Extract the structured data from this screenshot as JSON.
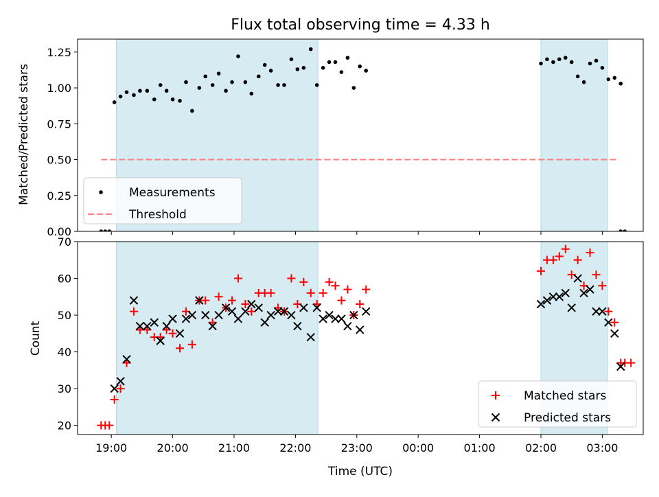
{
  "chart_data": [
    {
      "type": "scatter",
      "title": "Flux total observing time = 4.33 h",
      "xlabel": "",
      "ylabel": "Matched/Predicted stars",
      "ylim": [
        0,
        1.34
      ],
      "xlim": [
        "18:27",
        "03:40"
      ],
      "yticks": [
        "0.00",
        "0.25",
        "0.50",
        "0.75",
        "1.00",
        "1.25"
      ],
      "ytick_values": [
        0,
        0.25,
        0.5,
        0.75,
        1.0,
        1.25
      ],
      "grid": false,
      "legend_position": "lower-left",
      "shaded_intervals": [
        [
          "19:05",
          "22:22"
        ],
        [
          "02:00",
          "03:05"
        ]
      ],
      "threshold": {
        "name": "Threshold",
        "y": 0.5,
        "x_range": [
          "18:50",
          "03:15"
        ],
        "color": "#ff7f7f"
      },
      "series": [
        {
          "name": "Measurements",
          "marker": "dot",
          "color": "#000000",
          "points": [
            [
              "18:50",
              0
            ],
            [
              "18:54",
              0
            ],
            [
              "18:58",
              0
            ],
            [
              "19:03",
              0.9
            ],
            [
              "19:09",
              0.94
            ],
            [
              "19:15",
              0.97
            ],
            [
              "19:22",
              0.95
            ],
            [
              "19:28",
              0.98
            ],
            [
              "19:35",
              0.98
            ],
            [
              "19:42",
              0.92
            ],
            [
              "19:48",
              1.02
            ],
            [
              "19:54",
              0.98
            ],
            [
              "20:00",
              0.92
            ],
            [
              "20:07",
              0.91
            ],
            [
              "20:13",
              1.04
            ],
            [
              "20:19",
              0.84
            ],
            [
              "20:26",
              1.0
            ],
            [
              "20:32",
              1.08
            ],
            [
              "20:39",
              1.02
            ],
            [
              "20:45",
              1.1
            ],
            [
              "20:52",
              0.98
            ],
            [
              "20:58",
              1.04
            ],
            [
              "21:04",
              1.22
            ],
            [
              "21:11",
              1.04
            ],
            [
              "21:17",
              0.96
            ],
            [
              "21:24",
              1.08
            ],
            [
              "21:30",
              1.16
            ],
            [
              "21:36",
              1.12
            ],
            [
              "21:43",
              1.02
            ],
            [
              "21:49",
              1.02
            ],
            [
              "21:56",
              1.2
            ],
            [
              "22:02",
              1.13
            ],
            [
              "22:08",
              1.14
            ],
            [
              "22:15",
              1.27
            ],
            [
              "22:21",
              1.02
            ],
            [
              "22:27",
              1.14
            ],
            [
              "22:33",
              1.18
            ],
            [
              "22:39",
              1.18
            ],
            [
              "22:45",
              1.11
            ],
            [
              "22:51",
              1.21
            ],
            [
              "22:57",
              1.0
            ],
            [
              "23:03",
              1.15
            ],
            [
              "23:09",
              1.12
            ],
            [
              "02:00",
              1.17
            ],
            [
              "02:06",
              1.2
            ],
            [
              "02:12",
              1.18
            ],
            [
              "02:18",
              1.2
            ],
            [
              "02:24",
              1.21
            ],
            [
              "02:30",
              1.18
            ],
            [
              "02:36",
              1.08
            ],
            [
              "02:42",
              1.04
            ],
            [
              "02:48",
              1.17
            ],
            [
              "02:54",
              1.19
            ],
            [
              "03:00",
              1.14
            ],
            [
              "03:06",
              1.06
            ],
            [
              "03:12",
              1.07
            ],
            [
              "03:18",
              1.03
            ],
            [
              "03:18",
              0
            ],
            [
              "03:22",
              0
            ]
          ]
        }
      ]
    },
    {
      "type": "scatter",
      "title": "",
      "xlabel": "Time (UTC)",
      "ylabel": "Count",
      "ylim": [
        17.5,
        70
      ],
      "xlim": [
        "18:27",
        "03:40"
      ],
      "xticks": [
        "19:00",
        "20:00",
        "21:00",
        "22:00",
        "23:00",
        "00:00",
        "01:00",
        "02:00",
        "03:00"
      ],
      "yticks": [
        "20",
        "30",
        "40",
        "50",
        "60",
        "70"
      ],
      "ytick_values": [
        20,
        30,
        40,
        50,
        60,
        70
      ],
      "grid": false,
      "legend_position": "lower-right",
      "shaded_intervals": [
        [
          "19:05",
          "22:22"
        ],
        [
          "02:00",
          "03:05"
        ]
      ],
      "series": [
        {
          "name": "Matched stars",
          "marker": "plus",
          "color": "#ff0000",
          "points": [
            [
              "18:50",
              20
            ],
            [
              "18:54",
              20
            ],
            [
              "18:58",
              20
            ],
            [
              "19:03",
              27
            ],
            [
              "19:09",
              30
            ],
            [
              "19:15",
              37
            ],
            [
              "19:22",
              51
            ],
            [
              "19:28",
              46
            ],
            [
              "19:35",
              46
            ],
            [
              "19:42",
              44
            ],
            [
              "19:48",
              44
            ],
            [
              "19:54",
              46
            ],
            [
              "20:00",
              45
            ],
            [
              "20:07",
              41
            ],
            [
              "20:13",
              51
            ],
            [
              "20:19",
              42
            ],
            [
              "20:26",
              54
            ],
            [
              "20:32",
              54
            ],
            [
              "20:39",
              48
            ],
            [
              "20:45",
              55
            ],
            [
              "20:52",
              52
            ],
            [
              "20:58",
              54
            ],
            [
              "21:04",
              60
            ],
            [
              "21:11",
              53
            ],
            [
              "21:17",
              51
            ],
            [
              "21:24",
              56
            ],
            [
              "21:30",
              56
            ],
            [
              "21:36",
              56
            ],
            [
              "21:43",
              52
            ],
            [
              "21:49",
              51
            ],
            [
              "21:56",
              60
            ],
            [
              "22:02",
              53
            ],
            [
              "22:08",
              59
            ],
            [
              "22:15",
              56
            ],
            [
              "22:21",
              53
            ],
            [
              "22:27",
              56
            ],
            [
              "22:33",
              59
            ],
            [
              "22:39",
              58
            ],
            [
              "22:45",
              54
            ],
            [
              "22:51",
              57
            ],
            [
              "22:57",
              50
            ],
            [
              "23:03",
              53
            ],
            [
              "23:09",
              57
            ],
            [
              "02:00",
              62
            ],
            [
              "02:06",
              65
            ],
            [
              "02:12",
              65
            ],
            [
              "02:18",
              66
            ],
            [
              "02:24",
              68
            ],
            [
              "02:30",
              61
            ],
            [
              "02:36",
              65
            ],
            [
              "02:42",
              58
            ],
            [
              "02:48",
              67
            ],
            [
              "02:54",
              61
            ],
            [
              "03:00",
              58
            ],
            [
              "03:06",
              51
            ],
            [
              "03:12",
              48
            ],
            [
              "03:18",
              37
            ],
            [
              "03:22",
              37
            ],
            [
              "03:28",
              37
            ]
          ]
        },
        {
          "name": "Predicted stars",
          "marker": "x",
          "color": "#000000",
          "points": [
            [
              "19:03",
              30
            ],
            [
              "19:09",
              32
            ],
            [
              "19:15",
              38
            ],
            [
              "19:22",
              54
            ],
            [
              "19:28",
              47
            ],
            [
              "19:35",
              47
            ],
            [
              "19:42",
              48
            ],
            [
              "19:48",
              43
            ],
            [
              "19:54",
              47
            ],
            [
              "20:00",
              49
            ],
            [
              "20:07",
              45
            ],
            [
              "20:13",
              49
            ],
            [
              "20:19",
              50
            ],
            [
              "20:26",
              54
            ],
            [
              "20:32",
              50
            ],
            [
              "20:39",
              47
            ],
            [
              "20:45",
              50
            ],
            [
              "20:52",
              52
            ],
            [
              "20:58",
              51
            ],
            [
              "21:04",
              49
            ],
            [
              "21:11",
              51
            ],
            [
              "21:17",
              53
            ],
            [
              "21:24",
              52
            ],
            [
              "21:30",
              48
            ],
            [
              "21:36",
              50
            ],
            [
              "21:43",
              51
            ],
            [
              "21:49",
              51
            ],
            [
              "21:56",
              50
            ],
            [
              "22:02",
              47
            ],
            [
              "22:08",
              52
            ],
            [
              "22:15",
              44
            ],
            [
              "22:21",
              52
            ],
            [
              "22:27",
              49
            ],
            [
              "22:33",
              50
            ],
            [
              "22:39",
              49
            ],
            [
              "22:45",
              49
            ],
            [
              "22:51",
              47
            ],
            [
              "22:57",
              50
            ],
            [
              "23:03",
              46
            ],
            [
              "23:09",
              51
            ],
            [
              "02:00",
              53
            ],
            [
              "02:06",
              54
            ],
            [
              "02:12",
              55
            ],
            [
              "02:18",
              55
            ],
            [
              "02:24",
              56
            ],
            [
              "02:30",
              52
            ],
            [
              "02:36",
              60
            ],
            [
              "02:42",
              56
            ],
            [
              "02:48",
              57
            ],
            [
              "02:54",
              51
            ],
            [
              "03:00",
              51
            ],
            [
              "03:06",
              48
            ],
            [
              "03:12",
              45
            ],
            [
              "03:18",
              36
            ]
          ]
        }
      ]
    }
  ]
}
